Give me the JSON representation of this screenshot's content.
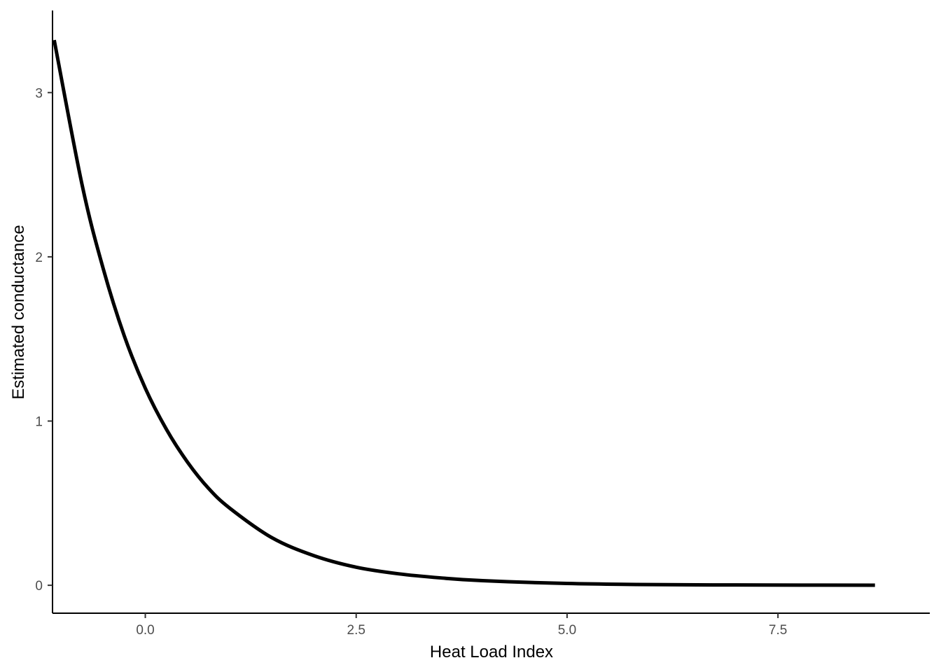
{
  "chart_data": {
    "type": "line",
    "title": "",
    "xlabel": "Heat Load Index",
    "ylabel": "Estimated conductance",
    "xlim": [
      -1.1,
      9.3
    ],
    "ylim": [
      -0.17,
      3.5
    ],
    "x_ticks": [
      0.0,
      2.5,
      5.0,
      7.5
    ],
    "x_tick_labels": [
      "0.0",
      "2.5",
      "5.0",
      "7.5"
    ],
    "y_ticks": [
      0,
      1,
      2,
      3
    ],
    "y_tick_labels": [
      "0",
      "1",
      "2",
      "3"
    ],
    "grid": false,
    "legend": "none",
    "series": [
      {
        "color": "#000000",
        "x": [
          -1.08,
          -0.75,
          -0.5,
          -0.25,
          0.0,
          0.25,
          0.5,
          0.75,
          1.0,
          1.5,
          2.0,
          2.5,
          3.0,
          3.5,
          4.0,
          5.0,
          6.0,
          7.0,
          8.0,
          8.65
        ],
        "y": [
          3.32,
          2.44,
          1.93,
          1.52,
          1.2,
          0.95,
          0.75,
          0.59,
          0.47,
          0.29,
          0.18,
          0.11,
          0.07,
          0.045,
          0.028,
          0.011,
          0.004,
          0.002,
          0.001,
          0.0005
        ]
      }
    ]
  }
}
